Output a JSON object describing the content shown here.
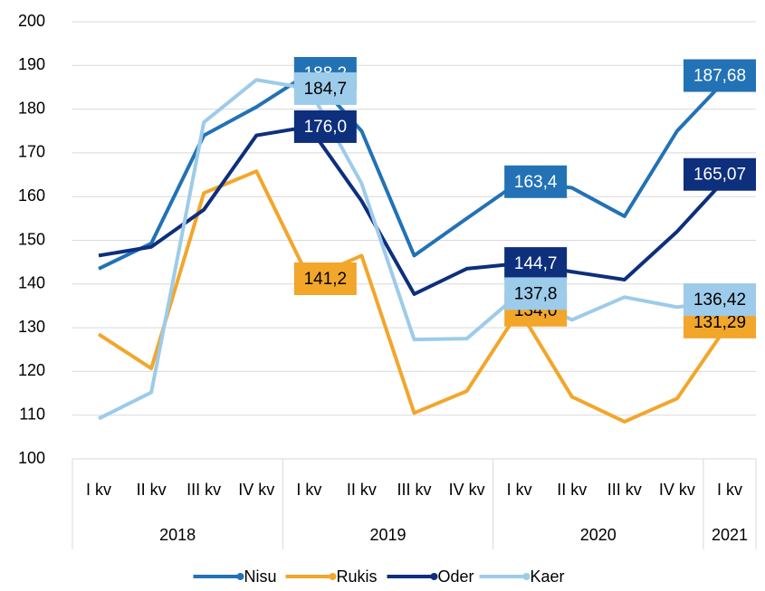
{
  "chart_data": {
    "type": "line",
    "categories": [
      "I kv",
      "II kv",
      "III kv",
      "IV kv",
      "I kv",
      "II kv",
      "III kv",
      "IV kv",
      "I kv",
      "II kv",
      "III kv",
      "IV kv",
      "I kv"
    ],
    "years": [
      "2018",
      "2019",
      "2020",
      "2021"
    ],
    "year_spans": [
      4,
      4,
      4,
      1
    ],
    "ylim": [
      100,
      200
    ],
    "yticks": [
      100,
      110,
      120,
      130,
      140,
      150,
      160,
      170,
      180,
      190,
      200
    ],
    "grid": true,
    "legend": "bottom",
    "series": [
      {
        "name": "Nisu",
        "color": "#2272b5",
        "label_text_color": "#ffffff",
        "values": [
          143.5,
          149.3,
          174,
          180.5,
          188.2,
          175,
          146.5,
          155,
          163.4,
          162,
          155.5,
          175,
          187.68
        ],
        "value_labels": [
          null,
          null,
          null,
          null,
          "188,2",
          null,
          null,
          null,
          "163,4",
          null,
          null,
          null,
          "187,68"
        ]
      },
      {
        "name": "Rukis",
        "color": "#f2a62a",
        "label_text_color": "#000000",
        "values": [
          128.5,
          120.7,
          160.8,
          165.8,
          141.2,
          146.5,
          110.5,
          115.5,
          134.0,
          114.2,
          108.5,
          113.8,
          131.29
        ],
        "value_labels": [
          null,
          null,
          null,
          null,
          "141,2",
          null,
          null,
          null,
          "134,0",
          null,
          null,
          null,
          "131,29"
        ]
      },
      {
        "name": "Oder",
        "color": "#0d2f7c",
        "label_text_color": "#ffffff",
        "values": [
          146.5,
          148.5,
          157,
          174,
          176.0,
          159,
          137.7,
          143.5,
          144.7,
          142.8,
          141,
          152,
          165.07
        ],
        "value_labels": [
          null,
          null,
          null,
          null,
          "176,0",
          null,
          null,
          null,
          "144,7",
          null,
          null,
          null,
          "165,07"
        ]
      },
      {
        "name": "Kaer",
        "color": "#9dcbea",
        "label_text_color": "#000000",
        "values": [
          109.2,
          115.2,
          177,
          186.7,
          184.7,
          163,
          127.3,
          127.5,
          137.8,
          131.8,
          137,
          134.7,
          136.42
        ],
        "value_labels": [
          null,
          null,
          null,
          null,
          "184,7",
          null,
          null,
          null,
          "137,8",
          null,
          null,
          null,
          "136,42"
        ]
      }
    ]
  }
}
